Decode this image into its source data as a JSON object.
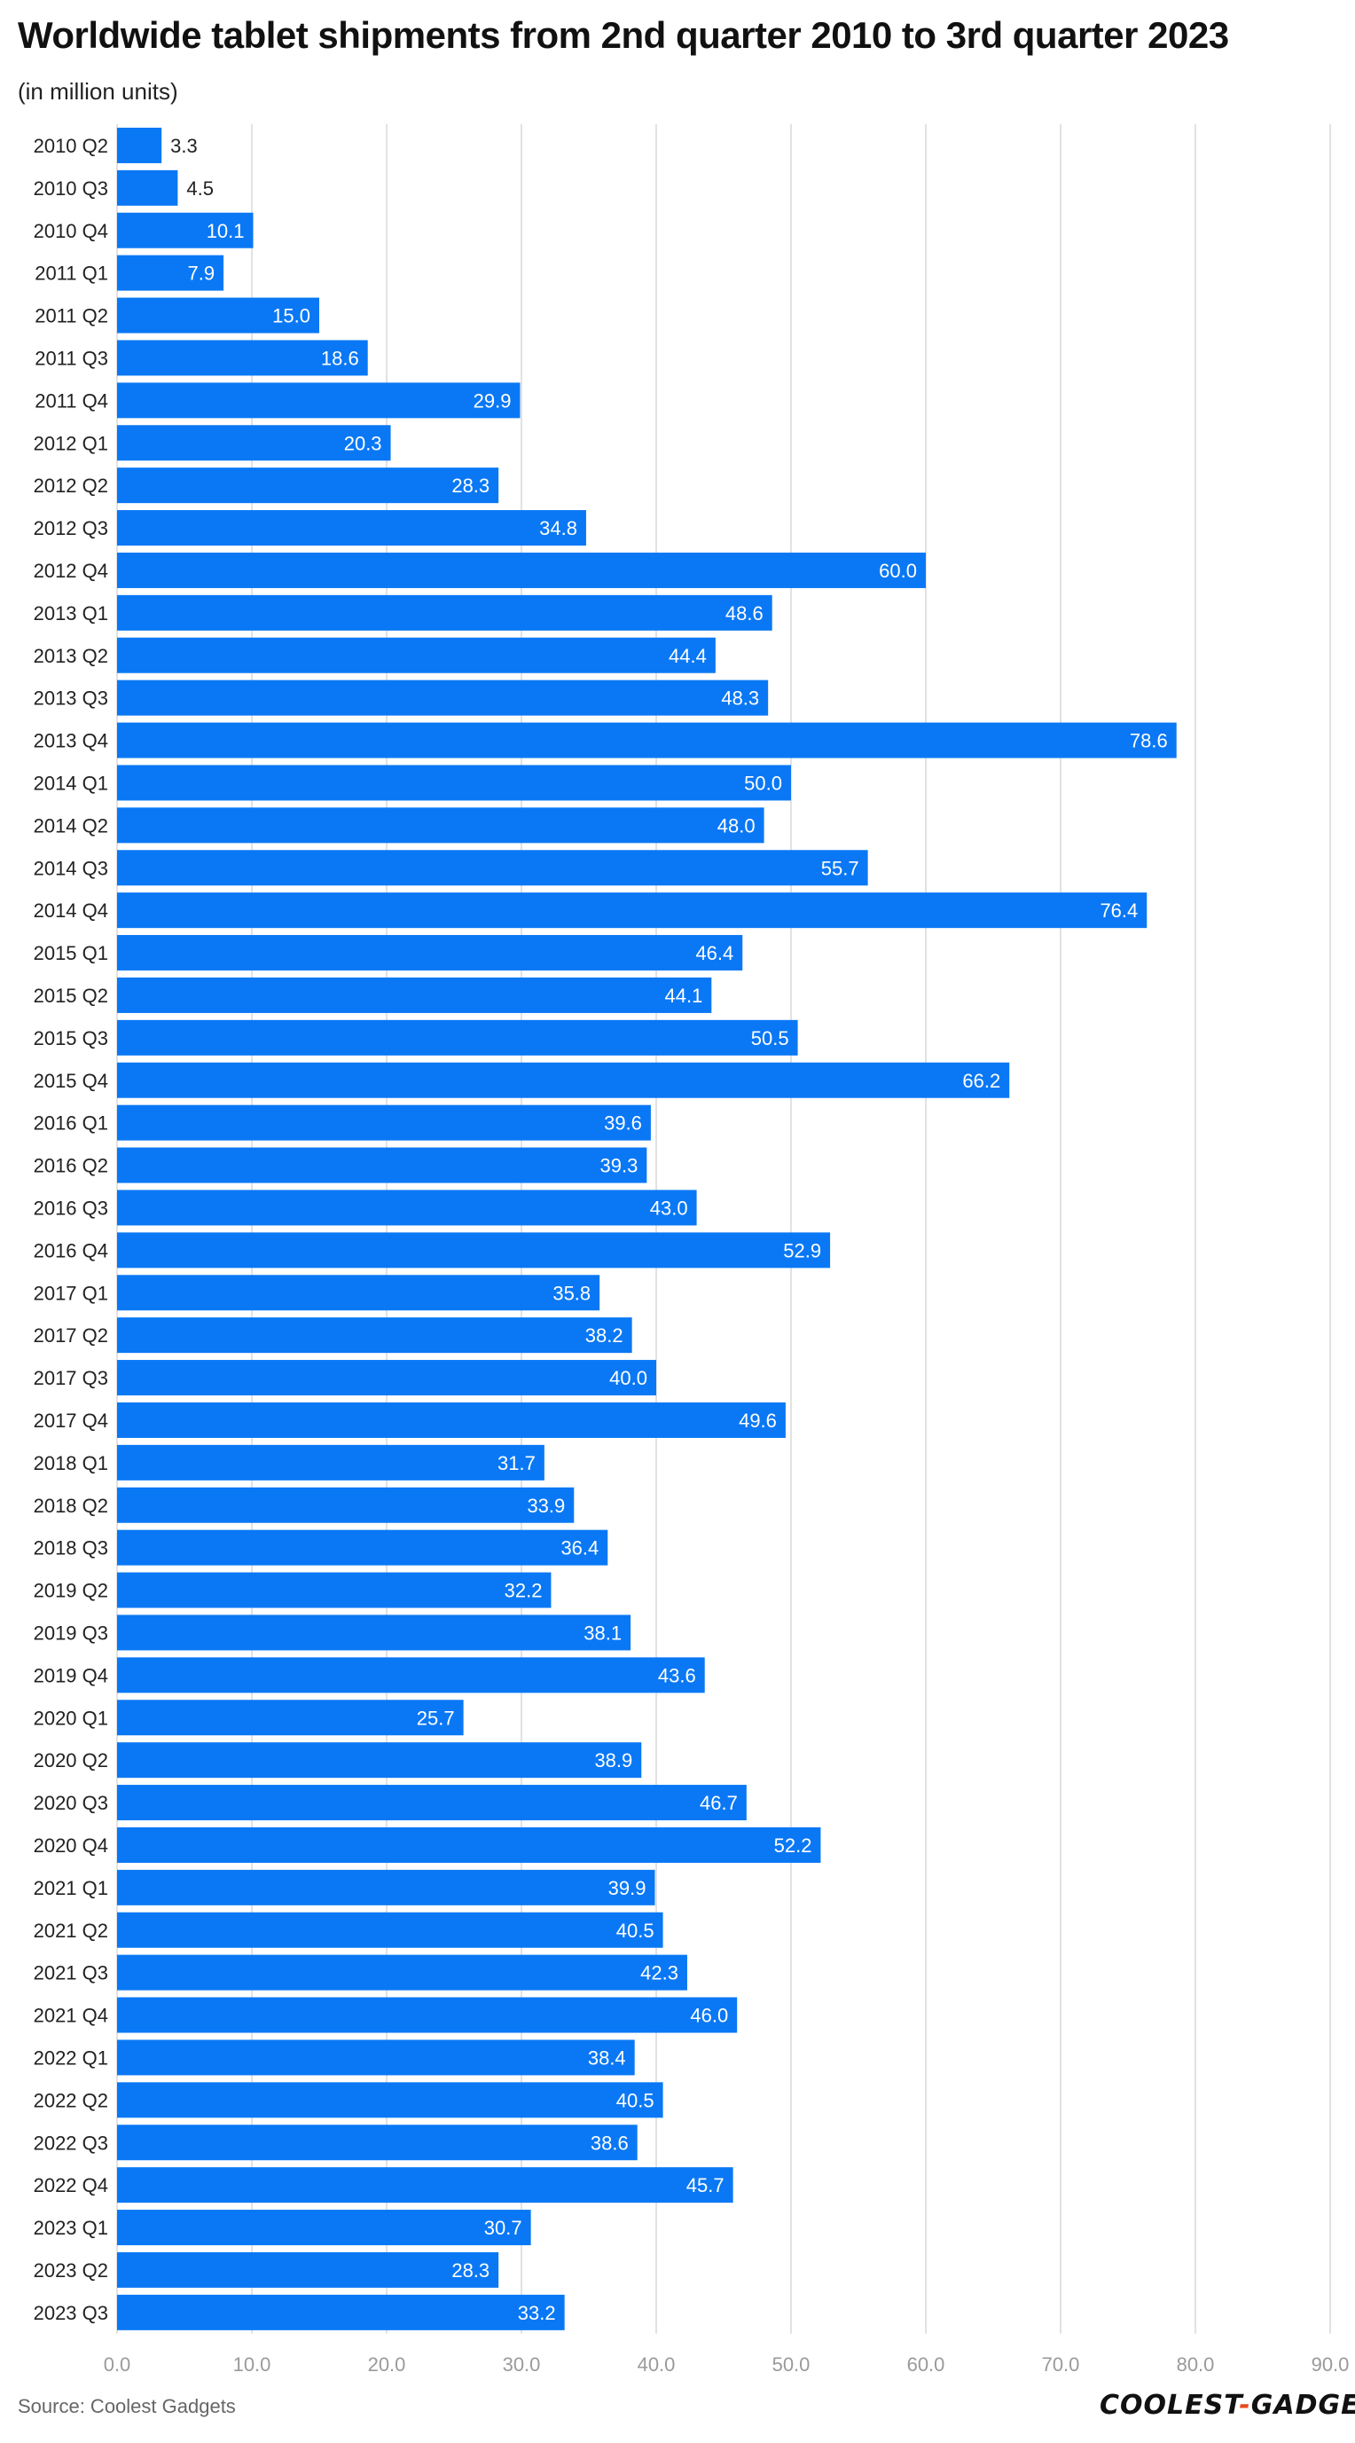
{
  "title": "Worldwide tablet shipments from 2nd quarter 2010 to 3rd quarter 2023",
  "subtitle": "(in million units)",
  "source": "Source: Coolest Gadgets",
  "logo": {
    "part1": "COOLEST",
    "separator": "-",
    "part2": "GADGETS"
  },
  "colors": {
    "bar": "#0a78f5",
    "grid": "#e2e2e2",
    "axis_text": "#9a9a9a",
    "label_text": "#222222",
    "logo_accent": "#e8491d"
  },
  "chart_data": {
    "type": "bar",
    "orientation": "horizontal",
    "title": "Worldwide tablet shipments from 2nd quarter 2010 to 3rd quarter 2023",
    "subtitle": "(in million units)",
    "xlim": [
      0,
      90
    ],
    "xticks": [
      "0.0",
      "10.0",
      "20.0",
      "30.0",
      "40.0",
      "50.0",
      "60.0",
      "70.0",
      "80.0",
      "90.0"
    ],
    "grid": true,
    "categories": [
      "2010 Q2",
      "2010 Q3",
      "2010 Q4",
      "2011 Q1",
      "2011 Q2",
      "2011 Q3",
      "2011 Q4",
      "2012 Q1",
      "2012 Q2",
      "2012 Q3",
      "2012 Q4",
      "2013 Q1",
      "2013 Q2",
      "2013 Q3",
      "2013 Q4",
      "2014 Q1",
      "2014 Q2",
      "2014 Q3",
      "2014 Q4",
      "2015 Q1",
      "2015 Q2",
      "2015 Q3",
      "2015 Q4",
      "2016 Q1",
      "2016 Q2",
      "2016 Q3",
      "2016 Q4",
      "2017 Q1",
      "2017 Q2",
      "2017 Q3",
      "2017 Q4",
      "2018 Q1",
      "2018 Q2",
      "2018 Q3",
      "2019 Q2",
      "2019 Q3",
      "2019 Q4",
      "2020 Q1",
      "2020 Q2",
      "2020 Q3",
      "2020 Q4",
      "2021 Q1",
      "2021 Q2",
      "2021 Q3",
      "2021 Q4",
      "2022 Q1",
      "2022 Q2",
      "2022 Q3",
      "2022 Q4",
      "2023 Q1",
      "2023 Q2",
      "2023 Q3"
    ],
    "values": [
      3.3,
      4.5,
      10.1,
      7.9,
      15.0,
      18.6,
      29.9,
      20.3,
      28.3,
      34.8,
      60.0,
      48.6,
      44.4,
      48.3,
      78.6,
      50.0,
      48.0,
      55.7,
      76.4,
      46.4,
      44.1,
      50.5,
      66.2,
      39.6,
      39.3,
      43.0,
      52.9,
      35.8,
      38.2,
      40.0,
      49.6,
      31.7,
      33.9,
      36.4,
      32.2,
      38.1,
      43.6,
      25.7,
      38.9,
      46.7,
      52.2,
      39.9,
      40.5,
      42.3,
      46.0,
      38.4,
      40.5,
      38.6,
      45.7,
      30.7,
      28.3,
      33.2
    ],
    "value_labels": [
      "3.3",
      "4.5",
      "10.1",
      "7.9",
      "15.0",
      "18.6",
      "29.9",
      "20.3",
      "28.3",
      "34.8",
      "60.0",
      "48.6",
      "44.4",
      "48.3",
      "78.6",
      "50.0",
      "48.0",
      "55.7",
      "76.4",
      "46.4",
      "44.1",
      "50.5",
      "66.2",
      "39.6",
      "39.3",
      "43.0",
      "52.9",
      "35.8",
      "38.2",
      "40.0",
      "49.6",
      "31.7",
      "33.9",
      "36.4",
      "32.2",
      "38.1",
      "43.6",
      "25.7",
      "38.9",
      "46.7",
      "52.2",
      "39.9",
      "40.5",
      "42.3",
      "46.0",
      "38.4",
      "40.5",
      "38.6",
      "45.7",
      "30.7",
      "28.3",
      "33.2"
    ]
  }
}
